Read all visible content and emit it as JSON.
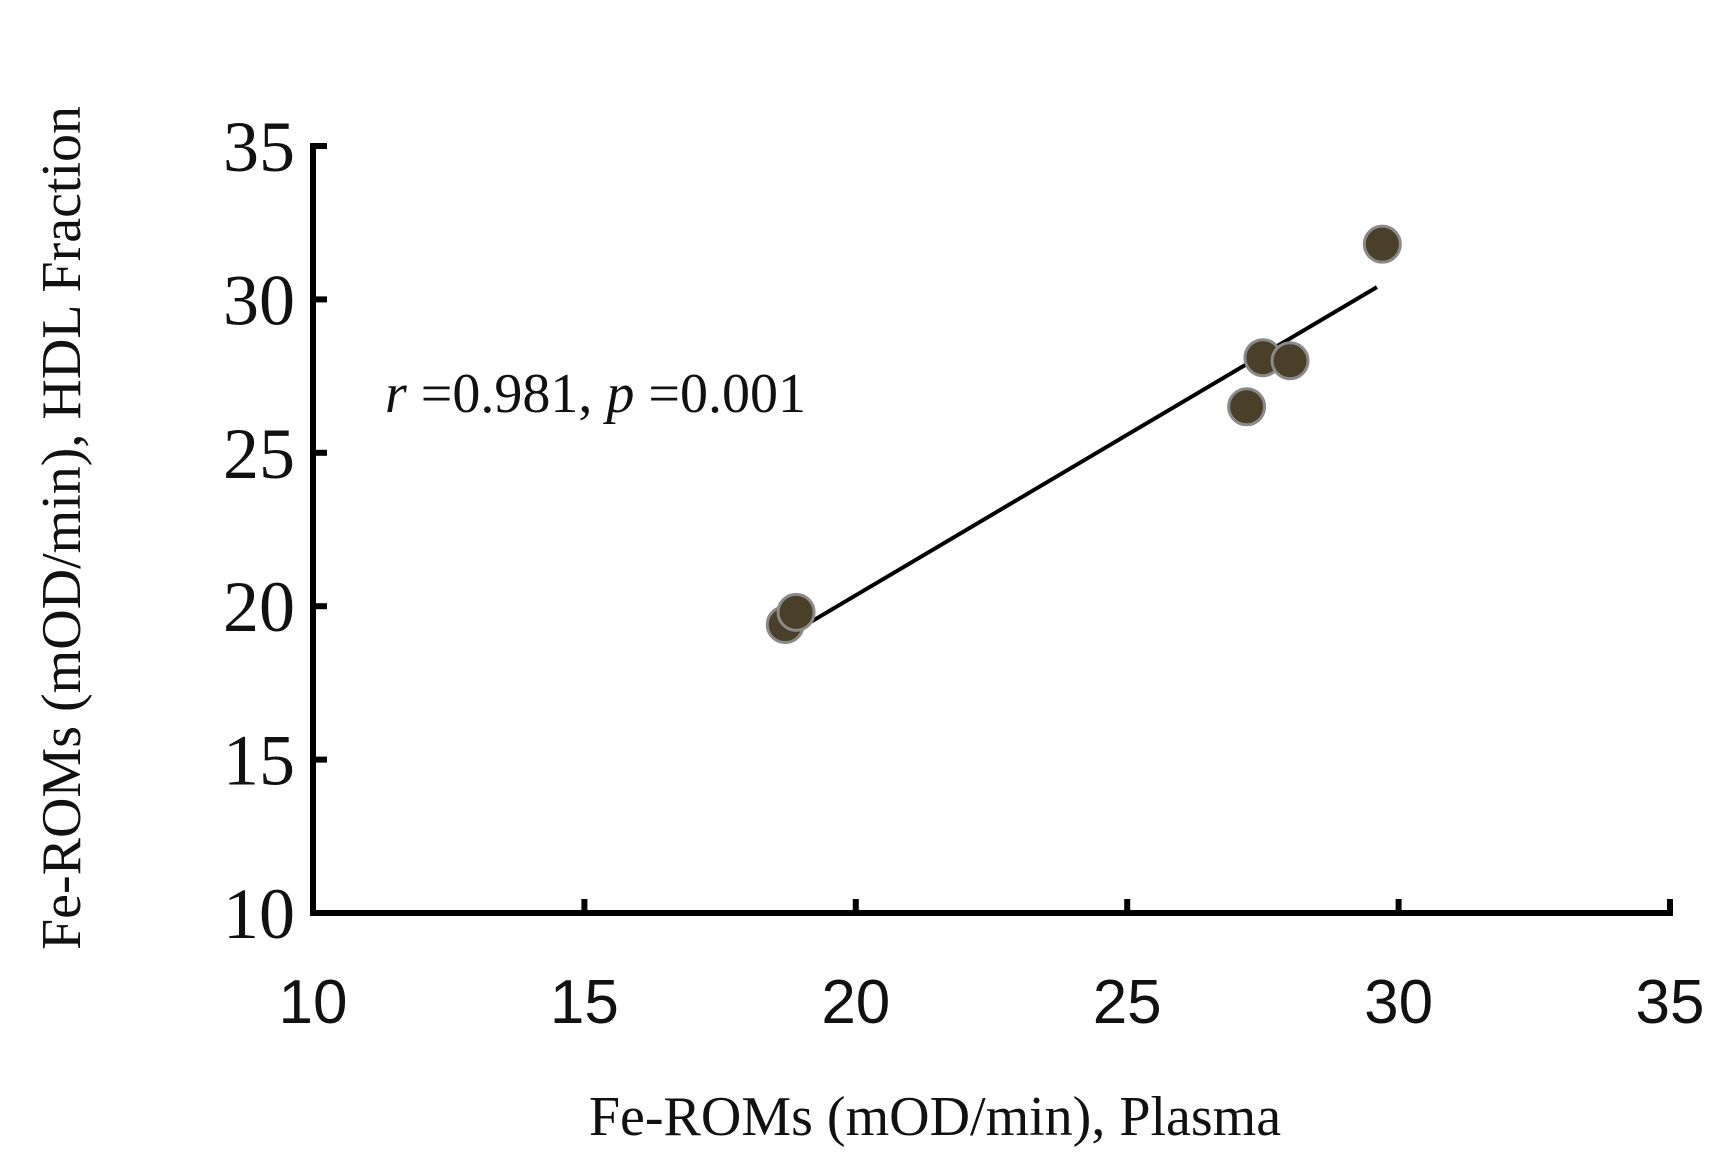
{
  "chart_data": {
    "type": "scatter",
    "title": "",
    "xlabel": "Fe-ROMs (mOD/min), Plasma",
    "ylabel": "Fe-ROMs (mOD/min), HDL Fraction",
    "xlim": [
      10,
      35
    ],
    "ylim": [
      10,
      35
    ],
    "x_ticks": [
      "10",
      "15",
      "20",
      "25",
      "30",
      "35"
    ],
    "y_ticks": [
      "10",
      "15",
      "20",
      "25",
      "30",
      "35"
    ],
    "grid": false,
    "series": [
      {
        "points": [
          {
            "x": 18.7,
            "y": 19.4
          },
          {
            "x": 18.9,
            "y": 19.8
          },
          {
            "x": 27.2,
            "y": 26.5
          },
          {
            "x": 27.5,
            "y": 28.1
          },
          {
            "x": 28.0,
            "y": 28.0
          },
          {
            "x": 29.7,
            "y": 31.8
          }
        ]
      }
    ],
    "trendline": {
      "x": [
        18.8,
        29.6
      ],
      "y": [
        19.1,
        30.4
      ]
    },
    "annotation": {
      "r_symbol": "r",
      "r_text": " =0.981, ",
      "p_symbol": "p",
      "p_text": " =0.001"
    },
    "colors": {
      "marker": "#4a3f28",
      "marker_edge": "#8a8a8a",
      "line": "#000000",
      "axis": "#000000"
    }
  }
}
